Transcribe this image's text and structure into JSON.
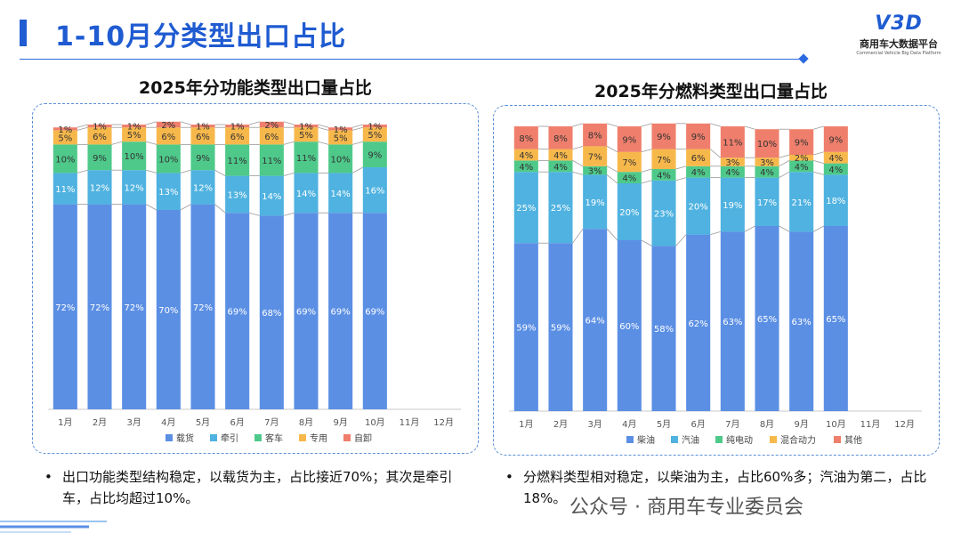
{
  "page": {
    "title": "1-10月分类型出口占比",
    "logo_text": "V3D",
    "logo_cn": "商用车大数据平台",
    "logo_en": "Commercial Vehicle Big Data Platform",
    "watermark": "公众号 · 商用车专业委员会",
    "notes": [
      "出口功能类型结构稳定，以载货为主，占比接近70%；其次是牵引车，占比均超过10%。",
      "分燃料类型相对稳定，以柴油为主，占比60%多；汽油为第二，占比18%。"
    ],
    "colors": {
      "accent": "#1f5bd1"
    }
  },
  "chart_data": [
    {
      "type": "bar",
      "stacked": true,
      "normalized": true,
      "title": "2025年分功能类型出口量占比",
      "categories": [
        "1月",
        "2月",
        "3月",
        "4月",
        "5月",
        "6月",
        "7月",
        "8月",
        "9月",
        "10月",
        "11月",
        "12月"
      ],
      "series": [
        {
          "name": "载货",
          "color": "#5b8fe4",
          "values": [
            72,
            72,
            72,
            70,
            72,
            69,
            68,
            69,
            69,
            69,
            null,
            null
          ]
        },
        {
          "name": "牵引",
          "color": "#4fb2e0",
          "values": [
            11,
            12,
            12,
            13,
            12,
            13,
            14,
            14,
            14,
            16,
            null,
            null
          ]
        },
        {
          "name": "客车",
          "color": "#4ec98a",
          "values": [
            10,
            9,
            10,
            10,
            9,
            11,
            11,
            11,
            10,
            9,
            null,
            null
          ]
        },
        {
          "name": "专用",
          "color": "#f7b84b",
          "values": [
            5,
            6,
            5,
            6,
            6,
            6,
            6,
            5,
            5,
            5,
            null,
            null
          ]
        },
        {
          "name": "自卸",
          "color": "#ef7f6c",
          "values": [
            1,
            1,
            1,
            2,
            1,
            1,
            2,
            1,
            1,
            1,
            null,
            null
          ]
        }
      ],
      "ylim": [
        0,
        100
      ],
      "legend": "bottom"
    },
    {
      "type": "bar",
      "stacked": true,
      "normalized": true,
      "title": "2025年分燃料类型出口量占比",
      "categories": [
        "1月",
        "2月",
        "3月",
        "4月",
        "5月",
        "6月",
        "7月",
        "8月",
        "9月",
        "10月",
        "11月",
        "12月"
      ],
      "series": [
        {
          "name": "柴油",
          "color": "#5b8fe4",
          "values": [
            59,
            59,
            64,
            60,
            58,
            62,
            63,
            65,
            63,
            65,
            null,
            null
          ]
        },
        {
          "name": "汽油",
          "color": "#4fb2e0",
          "values": [
            25,
            25,
            19,
            20,
            23,
            20,
            19,
            17,
            21,
            18,
            null,
            null
          ]
        },
        {
          "name": "纯电动",
          "color": "#4ec98a",
          "values": [
            4,
            4,
            3,
            4,
            4,
            4,
            4,
            4,
            4,
            4,
            null,
            null
          ]
        },
        {
          "name": "混合动力",
          "color": "#f7b84b",
          "values": [
            4,
            4,
            7,
            7,
            7,
            6,
            3,
            3,
            2,
            4,
            null,
            null
          ]
        },
        {
          "name": "其他",
          "color": "#ef7f6c",
          "values": [
            8,
            8,
            8,
            9,
            9,
            9,
            11,
            10,
            9,
            9,
            null,
            null
          ]
        }
      ],
      "ylim": [
        0,
        100
      ],
      "legend": "bottom"
    }
  ]
}
